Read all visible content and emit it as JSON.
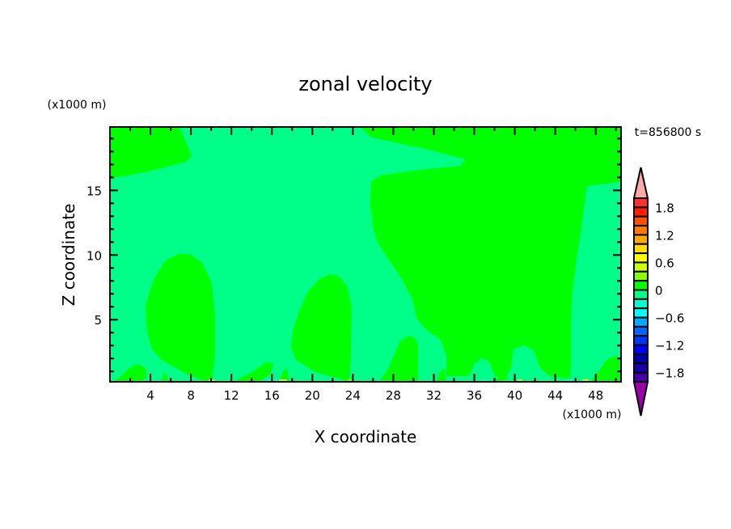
{
  "chart_data": {
    "type": "heatmap",
    "subtype": "filled-contour",
    "title": "zonal velocity",
    "xlabel": "X coordinate",
    "ylabel": "Z coordinate",
    "x_unit": "(x1000 m)",
    "y_unit": "(x1000 m)",
    "time_label": "t=856800 s",
    "xlim": [
      0,
      50.5
    ],
    "ylim": [
      0.2,
      19.9
    ],
    "x_ticks": [
      4,
      8,
      12,
      16,
      20,
      24,
      28,
      32,
      36,
      40,
      44,
      48
    ],
    "y_ticks": [
      5,
      10,
      15
    ],
    "colorbar": {
      "levels": [
        2.0,
        1.8,
        1.6,
        1.4,
        1.2,
        1.0,
        0.8,
        0.6,
        0.4,
        0.2,
        0,
        -0.2,
        -0.4,
        -0.6,
        -0.8,
        -1.0,
        -1.2,
        -1.4,
        -1.6,
        -1.8,
        -2.0
      ],
      "tick_labels": [
        "1.8",
        "1.2",
        "0.6",
        "0",
        "-0.6",
        "-1.2",
        "-1.8"
      ],
      "tick_values": [
        1.8,
        1.2,
        0.6,
        0,
        -0.6,
        -1.2,
        -1.8
      ],
      "colors": [
        "#ff3030",
        "#ff2000",
        "#ff5000",
        "#ff7a00",
        "#ffaa00",
        "#ffdd00",
        "#ffff00",
        "#ccff00",
        "#88ff00",
        "#00ff00",
        "#00ff88",
        "#00ffcc",
        "#00ffff",
        "#00aaff",
        "#0066ff",
        "#0033ff",
        "#0000ff",
        "#0000aa",
        "#1a00aa",
        "#4400aa"
      ],
      "over_color": "#ffaaaa",
      "under_color": "#9900aa"
    },
    "field_description_colors": {
      "dominant_negative": "#00ff88",
      "dominant_positive": "#00ff00"
    }
  }
}
